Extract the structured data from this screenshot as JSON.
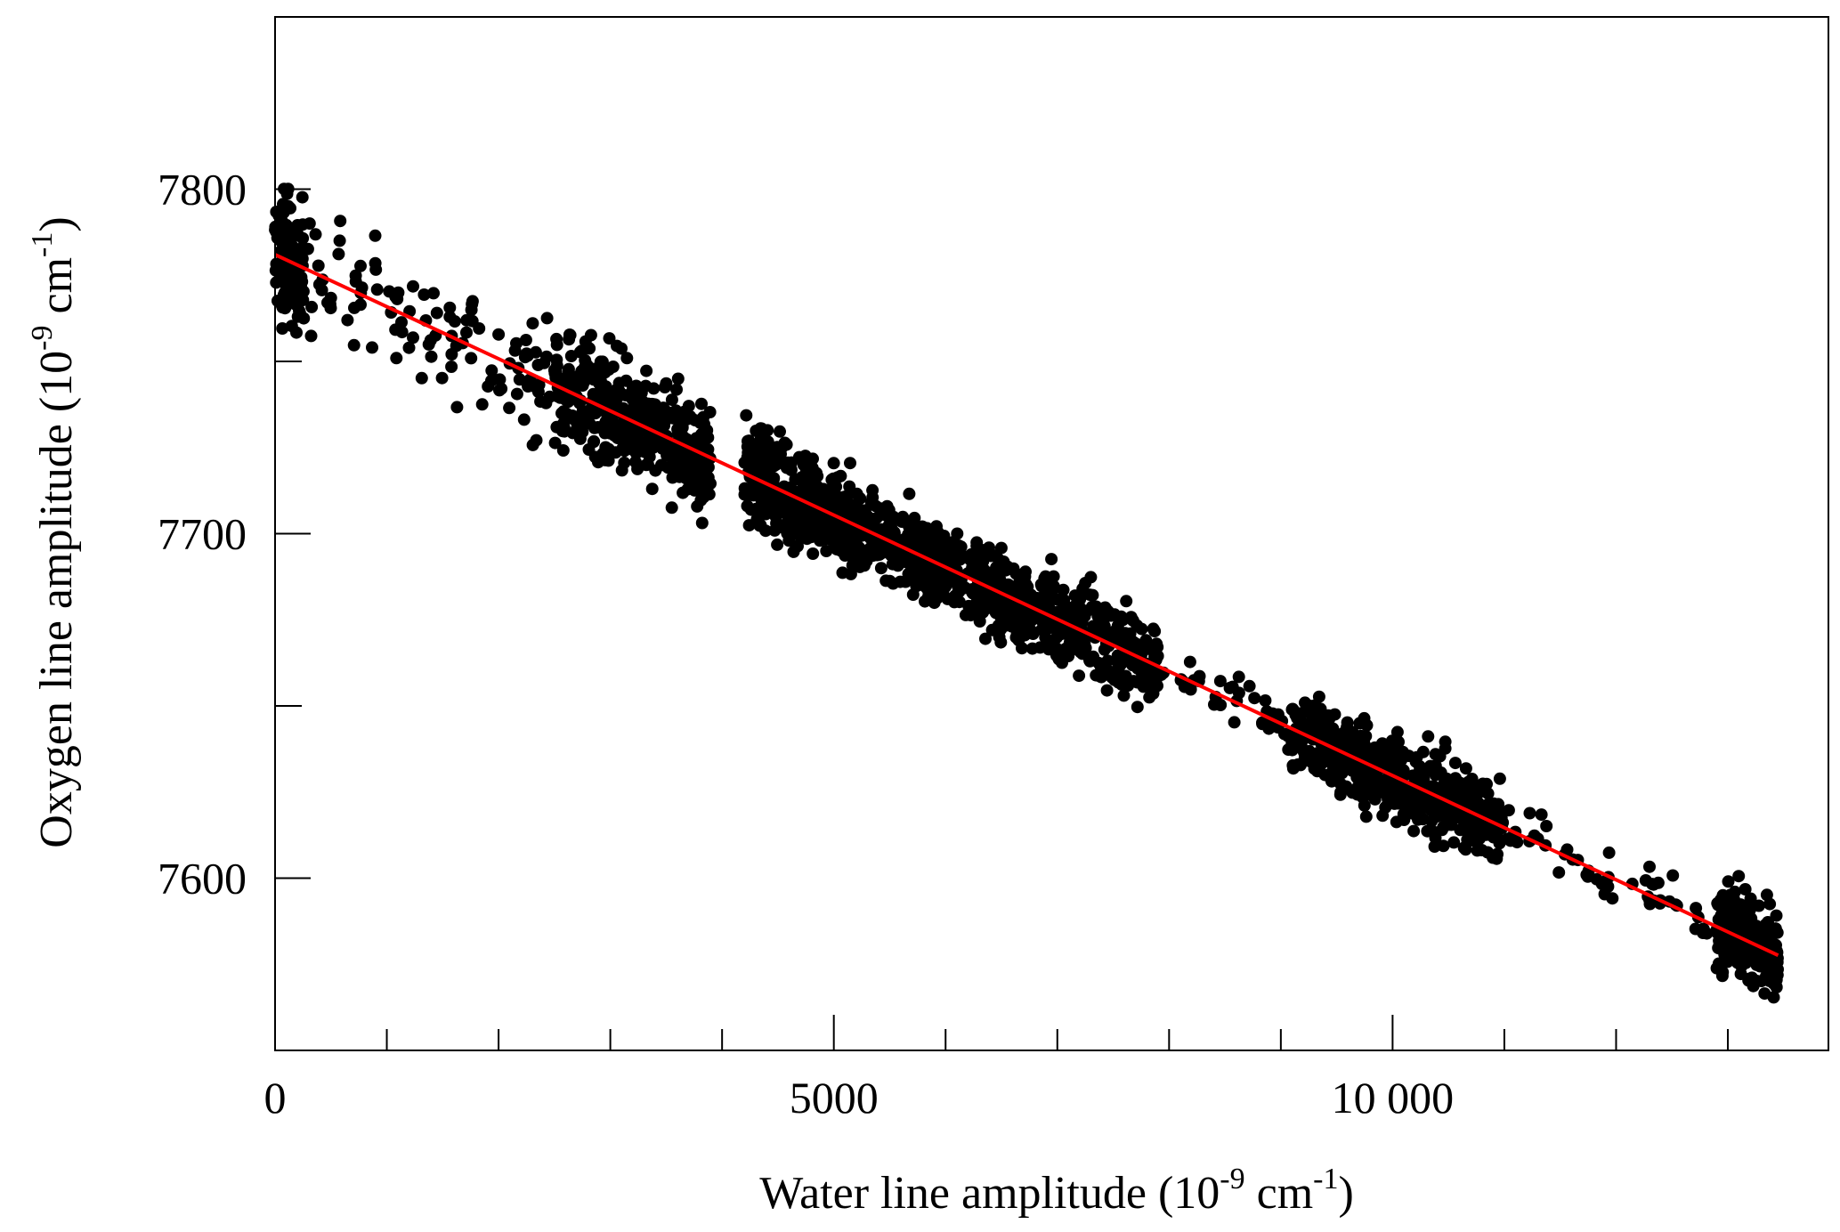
{
  "chart_data": {
    "type": "scatter",
    "title": "",
    "xlabel": {
      "base": "Water line amplitude (10",
      "exp1": "-9",
      "mid": " cm",
      "exp2": "-1",
      "end": ")"
    },
    "ylabel": {
      "base": "Oxygen line amplitude (10",
      "exp1": "-9",
      "mid": " cm",
      "exp2": "-1",
      "end": ")"
    },
    "xlim": [
      0,
      13900
    ],
    "ylim": [
      7550,
      7850
    ],
    "x_ticks_major": [
      0,
      5000,
      10000
    ],
    "x_tick_labels": [
      "0",
      "5000",
      "10 000"
    ],
    "x_ticks_minor": [
      1000,
      2000,
      3000,
      4000,
      6000,
      7000,
      8000,
      9000,
      11000,
      12000,
      13000
    ],
    "y_ticks_major": [
      7600,
      7700,
      7800
    ],
    "y_tick_labels": [
      "7600",
      "7700",
      "7800"
    ],
    "y_ticks_minor": [
      7650,
      7750
    ],
    "grid": false,
    "legend": "none",
    "series": [
      {
        "kind": "points",
        "color": "#000000",
        "clusters": [
          {
            "x_range": [
              0,
              250
            ],
            "y_center_at_x0": 7781,
            "spread": 9,
            "n": 120
          },
          {
            "x_range": [
              250,
              2500
            ],
            "y_center_at_x0": 7781,
            "spread": 9,
            "n": 110
          },
          {
            "x_range": [
              2500,
              3900
            ],
            "y_center_at_x0": 7781,
            "spread": 8,
            "n": 420
          },
          {
            "x_range": [
              4200,
              4800
            ],
            "y_center_at_x0": 7781,
            "spread": 7,
            "n": 200
          },
          {
            "x_range": [
              4800,
              6000
            ],
            "y_center_at_x0": 7781,
            "spread": 6,
            "n": 420
          },
          {
            "x_range": [
              6000,
              7900
            ],
            "y_center_at_x0": 7781,
            "spread": 6,
            "n": 480
          },
          {
            "x_range": [
              7900,
              9100
            ],
            "y_center_at_x0": 7781,
            "spread": 4,
            "n": 40
          },
          {
            "x_range": [
              9100,
              11000
            ],
            "y_center_at_x0": 7781,
            "spread": 6,
            "n": 520
          },
          {
            "x_range": [
              11000,
              12900
            ],
            "y_center_at_x0": 7781,
            "spread": 4,
            "n": 50
          },
          {
            "x_range": [
              12900,
              13450
            ],
            "y_center_at_x0": 7781,
            "spread": 6,
            "n": 260
          }
        ],
        "slope_per_1e9": -0.01512
      },
      {
        "kind": "fit-line",
        "color": "#ff0000",
        "x": [
          0,
          13450
        ],
        "y": [
          7781,
          7577.6
        ]
      }
    ]
  }
}
